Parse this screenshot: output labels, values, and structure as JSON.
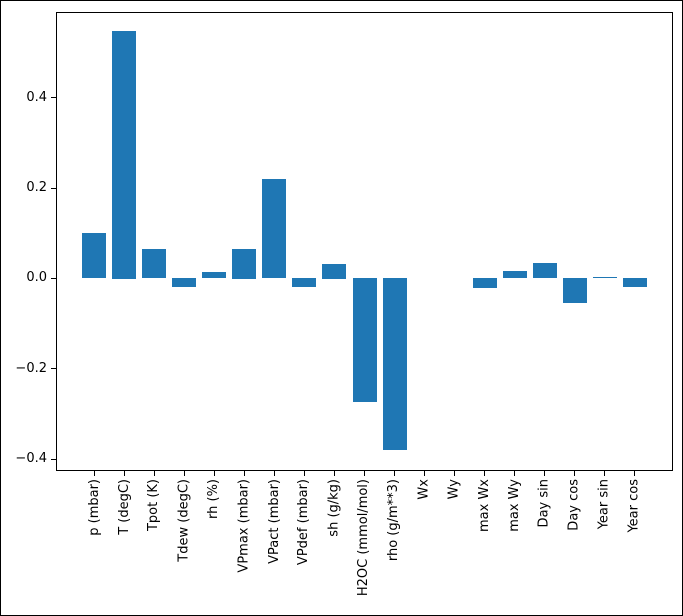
{
  "window": {
    "background": "#ffffff",
    "frame_border_color": "#000000"
  },
  "chart_data": {
    "type": "bar",
    "title": "",
    "xlabel": "",
    "ylabel": "",
    "categories": [
      "p (mbar)",
      "T (degC)",
      "Tpot (K)",
      "Tdew (degC)",
      "rh (%)",
      "VPmax (mbar)",
      "VPact (mbar)",
      "VPdef (mbar)",
      "sh (g/kg)",
      "H2OC (mmol/mol)",
      "rho (g/m**3)",
      "Wx",
      "Wy",
      "max Wx",
      "max Wy",
      "Day sin",
      "Day cos",
      "Year sin",
      "Year cos"
    ],
    "values": [
      0.1,
      0.549,
      0.065,
      -0.02,
      0.014,
      0.066,
      0.22,
      -0.02,
      0.033,
      -0.274,
      -0.38,
      0.0,
      0.0,
      -0.023,
      0.016,
      0.034,
      -0.056,
      0.003,
      -0.02
    ],
    "bar_color": "#1f77b4",
    "bar_width_units": 0.8,
    "yticks": [
      0.4,
      0.2,
      0.0,
      -0.2,
      -0.4
    ],
    "ytick_labels": [
      "0.4",
      "0.2",
      "0.0",
      "−0.2",
      "−0.4"
    ],
    "ylim": [
      -0.4264,
      0.5902
    ],
    "xlim": [
      -1.28,
      19.28
    ],
    "x_tick_rotation": 90,
    "grid": false,
    "legend": null
  }
}
